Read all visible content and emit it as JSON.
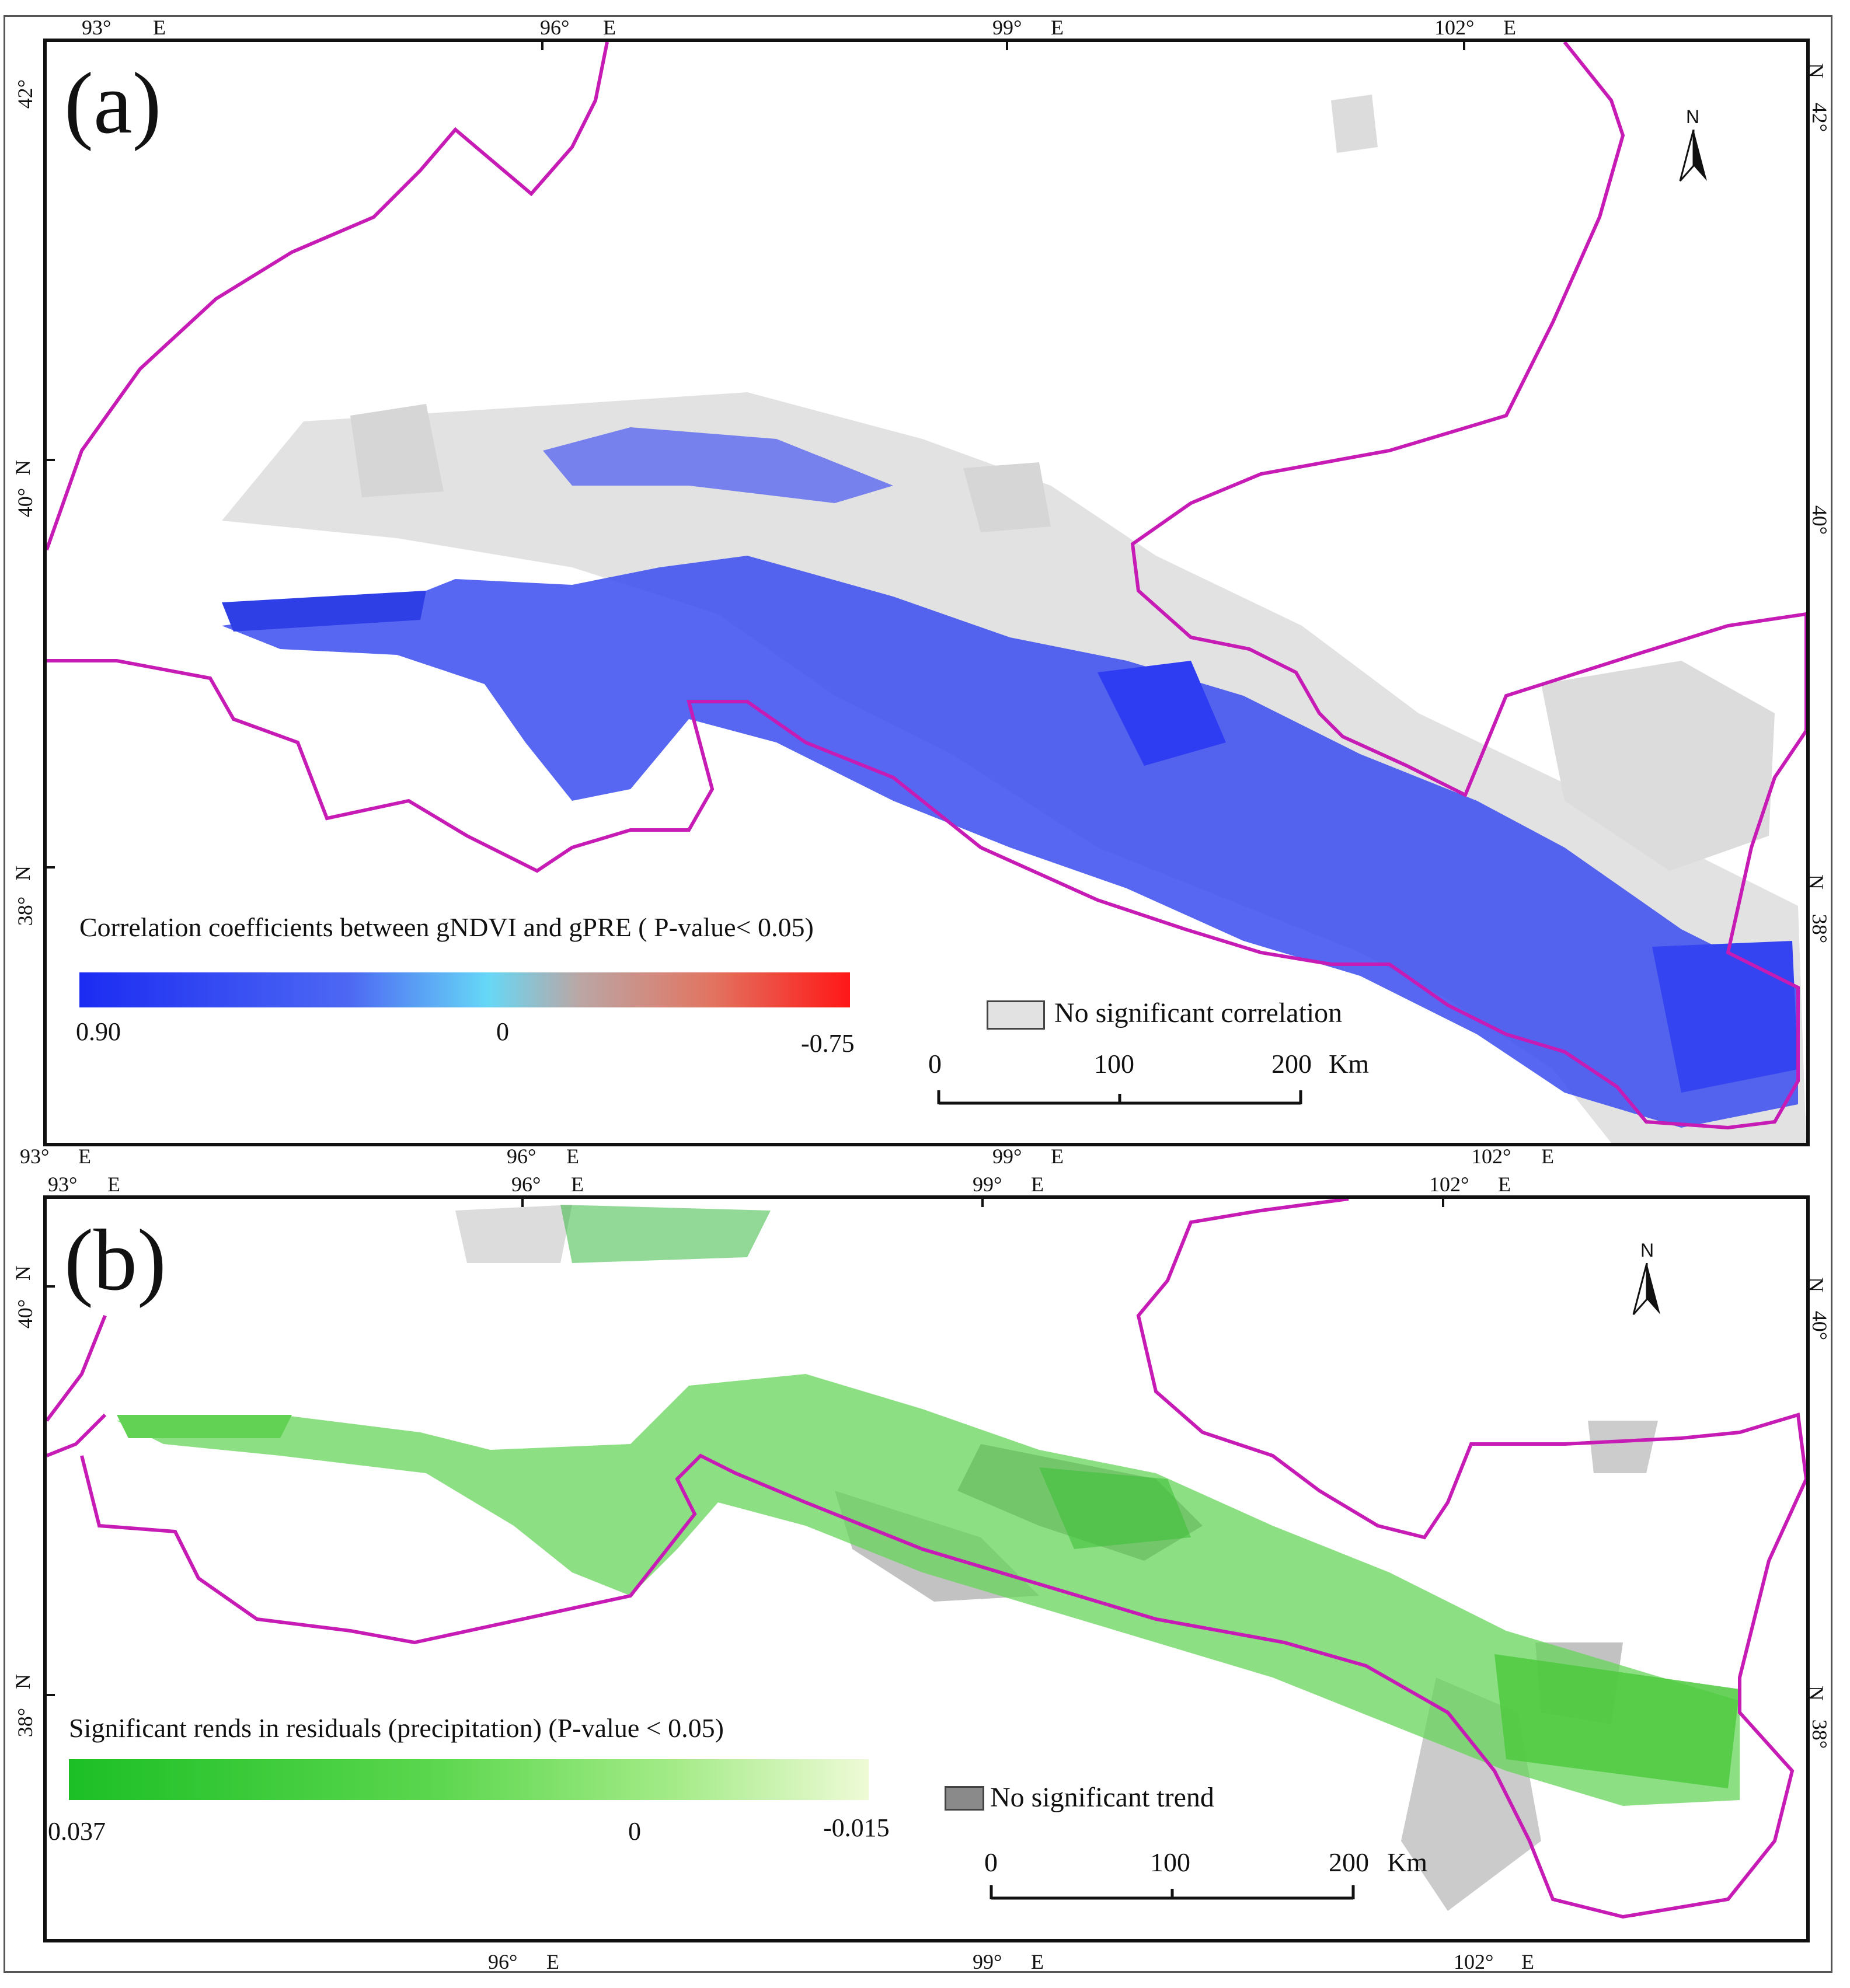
{
  "colors": {
    "boundary": "#c61bb4",
    "no_sig_a": "#d9d9d9",
    "corr_blue": "#2c3ff0",
    "trend_green": "#5fd24a",
    "no_sig_b": "#8a8a8a"
  },
  "panel_a": {
    "label": "(a)",
    "lon_ticks": [
      "93°",
      "E",
      "96°",
      "E",
      "99°",
      "E",
      "102°",
      "E"
    ],
    "lat_ticks_left": [
      "42°",
      "40°",
      "38°"
    ],
    "lat_suffix": "N",
    "lon_ticks_bottom": [
      "93°",
      "E",
      "96°",
      "E",
      "99°",
      "E",
      "102°",
      "E"
    ],
    "legend": {
      "title": "Correlation coefficients between gNDVI and gPRE ( P-value< 0.05)",
      "min": "0.90",
      "mid": "0",
      "max": "-0.75",
      "no_sig_label": "No significant correlation"
    },
    "scale": {
      "zero": "0",
      "mid": "100",
      "end": "200",
      "unit": "Km"
    },
    "north": "N"
  },
  "panel_b": {
    "label": "(b)",
    "lon_ticks": [
      "93°",
      "E",
      "96°",
      "E",
      "99°",
      "E",
      "102°",
      "E"
    ],
    "lat_ticks_left": [
      "40°",
      "38°"
    ],
    "lat_suffix": "N",
    "lon_ticks_bottom": [
      "96°",
      "E",
      "99°",
      "E",
      "102°",
      "E"
    ],
    "legend": {
      "title": "Significant rends in residuals (precipitation) (P-value < 0.05)",
      "min": "0.037",
      "mid": "0",
      "max": "-0.015",
      "no_sig_label": "No significant trend"
    },
    "scale": {
      "zero": "0",
      "mid": "100",
      "end": "200",
      "unit": "Km"
    },
    "north": "N"
  }
}
